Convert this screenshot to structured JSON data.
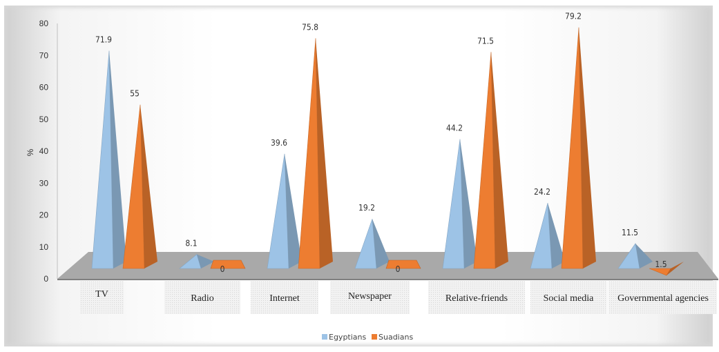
{
  "chart_data": {
    "type": "bar",
    "style": "3d-pyramid",
    "ylabel": "%",
    "ylim": [
      0,
      80
    ],
    "yticks": [
      0,
      10,
      20,
      30,
      40,
      50,
      60,
      70,
      80
    ],
    "categories": [
      "TV",
      "Radio",
      "Internet",
      "Newspaper",
      "Relative-friends",
      "Social media",
      "Governmental agencies"
    ],
    "series": [
      {
        "name": "Egyptians",
        "color": "#9dc3e6",
        "values": [
          71.9,
          8.1,
          39.6,
          19.2,
          44.2,
          24.2,
          11.5
        ]
      },
      {
        "name": "Suadians",
        "color": "#ed7d31",
        "values": [
          55,
          0,
          75.8,
          0,
          71.5,
          79.2,
          1.5
        ]
      }
    ],
    "legend_position": "bottom",
    "grid": false
  }
}
